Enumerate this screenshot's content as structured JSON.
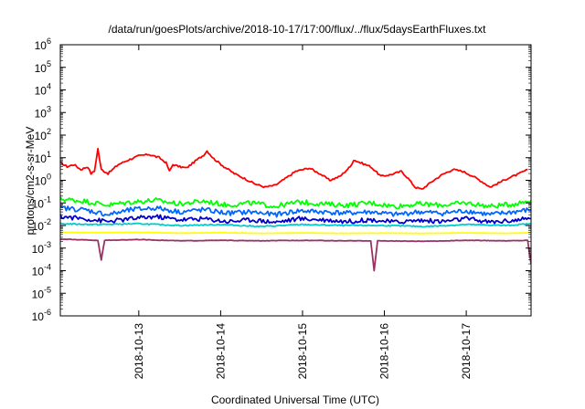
{
  "chart_data": {
    "type": "line",
    "title": "/data/run/goesPlots/archive/2018-10-17/17:00/flux/../flux/5daysEarthFluxes.txt",
    "xlabel": "Coordinated Universal Time (UTC)",
    "ylabel": "protons/cm2-s-sr-MeV",
    "y_scale": "log",
    "y_ticks": [
      {
        "base": "10",
        "exp": "-6",
        "value": 1e-06
      },
      {
        "base": "10",
        "exp": "-5",
        "value": 1e-05
      },
      {
        "base": "10",
        "exp": "-4",
        "value": 0.0001
      },
      {
        "base": "10",
        "exp": "-3",
        "value": 0.001
      },
      {
        "base": "10",
        "exp": "-2",
        "value": 0.01
      },
      {
        "base": "10",
        "exp": "-1",
        "value": 0.1
      },
      {
        "base": "10",
        "exp": "0",
        "value": 1
      },
      {
        "base": "10",
        "exp": "1",
        "value": 10
      },
      {
        "base": "10",
        "exp": "2",
        "value": 100
      },
      {
        "base": "10",
        "exp": "3",
        "value": 1000
      },
      {
        "base": "10",
        "exp": "4",
        "value": 10000
      },
      {
        "base": "10",
        "exp": "5",
        "value": 100000
      },
      {
        "base": "10",
        "exp": "6",
        "value": 1000000
      }
    ],
    "ylim": [
      1e-06,
      1000000.0
    ],
    "xlim": [
      "2018-10-12T01:00",
      "2018-10-17T19:00"
    ],
    "x_ticks": [
      "2018-10-13",
      "2018-10-14",
      "2018-10-15",
      "2018-10-16",
      "2018-10-17"
    ],
    "grid": false,
    "legend": "none",
    "series": [
      {
        "color": "#ff0000",
        "values": [
          [
            "2018-10-12T01:00",
            6
          ],
          [
            "2018-10-12T03:00",
            4
          ],
          [
            "2018-10-12T05:00",
            5
          ],
          [
            "2018-10-12T07:00",
            3
          ],
          [
            "2018-10-12T09:00",
            4
          ],
          [
            "2018-10-12T10:00",
            2
          ],
          [
            "2018-10-12T11:00",
            2.5
          ],
          [
            "2018-10-12T12:00",
            25
          ],
          [
            "2018-10-12T13:00",
            3
          ],
          [
            "2018-10-12T15:00",
            2
          ],
          [
            "2018-10-12T18:00",
            5
          ],
          [
            "2018-10-12T21:00",
            8
          ],
          [
            "2018-10-13T00:00",
            12
          ],
          [
            "2018-10-13T03:00",
            14
          ],
          [
            "2018-10-13T06:00",
            10
          ],
          [
            "2018-10-13T08:00",
            6
          ],
          [
            "2018-10-13T09:00",
            2.5
          ],
          [
            "2018-10-13T10:00",
            5
          ],
          [
            "2018-10-13T12:00",
            4
          ],
          [
            "2018-10-13T14:00",
            3.5
          ],
          [
            "2018-10-13T17:00",
            8
          ],
          [
            "2018-10-13T19:00",
            13
          ],
          [
            "2018-10-13T20:00",
            20
          ],
          [
            "2018-10-13T22:00",
            9
          ],
          [
            "2018-10-14T01:00",
            4
          ],
          [
            "2018-10-14T04:00",
            2
          ],
          [
            "2018-10-14T07:00",
            1.2
          ],
          [
            "2018-10-14T10:00",
            0.7
          ],
          [
            "2018-10-14T13:00",
            0.5
          ],
          [
            "2018-10-14T16:00",
            0.6
          ],
          [
            "2018-10-14T19:00",
            1.2
          ],
          [
            "2018-10-14T22:00",
            2.5
          ],
          [
            "2018-10-15T02:00",
            3.5
          ],
          [
            "2018-10-15T05:00",
            2
          ],
          [
            "2018-10-15T08:00",
            1
          ],
          [
            "2018-10-15T11:00",
            1.5
          ],
          [
            "2018-10-15T14:00",
            4
          ],
          [
            "2018-10-15T15:00",
            8
          ],
          [
            "2018-10-15T17:00",
            6
          ],
          [
            "2018-10-15T20:00",
            4
          ],
          [
            "2018-10-15T23:00",
            1.5
          ],
          [
            "2018-10-16T02:00",
            1.8
          ],
          [
            "2018-10-16T05:00",
            2.5
          ],
          [
            "2018-10-16T07:00",
            1.2
          ],
          [
            "2018-10-16T09:00",
            0.5
          ],
          [
            "2018-10-16T11:00",
            0.4
          ],
          [
            "2018-10-16T14:00",
            0.9
          ],
          [
            "2018-10-16T17:00",
            1.8
          ],
          [
            "2018-10-16T20:00",
            3
          ],
          [
            "2018-10-16T23:00",
            2.5
          ],
          [
            "2018-10-17T02:00",
            1.5
          ],
          [
            "2018-10-17T05:00",
            0.8
          ],
          [
            "2018-10-17T07:00",
            0.5
          ],
          [
            "2018-10-17T09:00",
            0.7
          ],
          [
            "2018-10-17T12:00",
            1.2
          ],
          [
            "2018-10-17T15:00",
            1.8
          ],
          [
            "2018-10-17T18:00",
            3
          ]
        ]
      },
      {
        "color": "#00ff00",
        "values": [
          [
            "2018-10-12T01:00",
            0.15
          ],
          [
            "2018-10-12T08:00",
            0.12
          ],
          [
            "2018-10-12T15:00",
            0.08
          ],
          [
            "2018-10-12T22:00",
            0.11
          ],
          [
            "2018-10-13T05:00",
            0.13
          ],
          [
            "2018-10-13T12:00",
            0.09
          ],
          [
            "2018-10-13T19:00",
            0.12
          ],
          [
            "2018-10-14T02:00",
            0.08
          ],
          [
            "2018-10-14T09:00",
            0.1
          ],
          [
            "2018-10-14T16:00",
            0.07
          ],
          [
            "2018-10-14T23:00",
            0.11
          ],
          [
            "2018-10-15T06:00",
            0.09
          ],
          [
            "2018-10-15T13:00",
            0.08
          ],
          [
            "2018-10-15T20:00",
            0.1
          ],
          [
            "2018-10-16T03:00",
            0.07
          ],
          [
            "2018-10-16T10:00",
            0.09
          ],
          [
            "2018-10-16T17:00",
            0.08
          ],
          [
            "2018-10-17T00:00",
            0.1
          ],
          [
            "2018-10-17T07:00",
            0.07
          ],
          [
            "2018-10-17T14:00",
            0.09
          ],
          [
            "2018-10-17T19:00",
            0.13
          ]
        ]
      },
      {
        "color": "#0066ff",
        "values": [
          [
            "2018-10-12T01:00",
            0.06
          ],
          [
            "2018-10-12T08:00",
            0.05
          ],
          [
            "2018-10-12T15:00",
            0.03
          ],
          [
            "2018-10-12T22:00",
            0.05
          ],
          [
            "2018-10-13T05:00",
            0.06
          ],
          [
            "2018-10-13T12:00",
            0.04
          ],
          [
            "2018-10-13T19:00",
            0.05
          ],
          [
            "2018-10-14T02:00",
            0.035
          ],
          [
            "2018-10-14T09:00",
            0.04
          ],
          [
            "2018-10-14T16:00",
            0.03
          ],
          [
            "2018-10-14T23:00",
            0.045
          ],
          [
            "2018-10-15T06:00",
            0.04
          ],
          [
            "2018-10-15T13:00",
            0.035
          ],
          [
            "2018-10-15T20:00",
            0.04
          ],
          [
            "2018-10-16T03:00",
            0.03
          ],
          [
            "2018-10-16T10:00",
            0.04
          ],
          [
            "2018-10-16T17:00",
            0.035
          ],
          [
            "2018-10-17T00:00",
            0.045
          ],
          [
            "2018-10-17T07:00",
            0.03
          ],
          [
            "2018-10-17T14:00",
            0.04
          ],
          [
            "2018-10-17T19:00",
            0.05
          ]
        ]
      },
      {
        "color": "#0000cc",
        "values": [
          [
            "2018-10-12T01:00",
            0.025
          ],
          [
            "2018-10-12T08:00",
            0.02
          ],
          [
            "2018-10-12T15:00",
            0.015
          ],
          [
            "2018-10-12T22:00",
            0.02
          ],
          [
            "2018-10-13T05:00",
            0.025
          ],
          [
            "2018-10-13T12:00",
            0.018
          ],
          [
            "2018-10-13T19:00",
            0.02
          ],
          [
            "2018-10-14T02:00",
            0.015
          ],
          [
            "2018-10-14T09:00",
            0.018
          ],
          [
            "2018-10-14T16:00",
            0.014
          ],
          [
            "2018-10-14T23:00",
            0.02
          ],
          [
            "2018-10-15T06:00",
            0.018
          ],
          [
            "2018-10-15T13:00",
            0.015
          ],
          [
            "2018-10-15T20:00",
            0.018
          ],
          [
            "2018-10-16T03:00",
            0.014
          ],
          [
            "2018-10-16T10:00",
            0.017
          ],
          [
            "2018-10-16T17:00",
            0.015
          ],
          [
            "2018-10-17T00:00",
            0.02
          ],
          [
            "2018-10-17T07:00",
            0.014
          ],
          [
            "2018-10-17T14:00",
            0.017
          ],
          [
            "2018-10-17T19:00",
            0.02
          ]
        ]
      },
      {
        "color": "#00cccc",
        "values": [
          [
            "2018-10-12T01:00",
            0.012
          ],
          [
            "2018-10-12T12:00",
            0.011
          ],
          [
            "2018-10-13T00:00",
            0.012
          ],
          [
            "2018-10-13T12:00",
            0.01
          ],
          [
            "2018-10-14T00:00",
            0.011
          ],
          [
            "2018-10-14T12:00",
            0.009
          ],
          [
            "2018-10-15T00:00",
            0.011
          ],
          [
            "2018-10-15T12:00",
            0.01
          ],
          [
            "2018-10-16T00:00",
            0.01
          ],
          [
            "2018-10-16T12:00",
            0.009
          ],
          [
            "2018-10-17T00:00",
            0.011
          ],
          [
            "2018-10-17T12:00",
            0.01
          ],
          [
            "2018-10-17T19:00",
            0.012
          ]
        ]
      },
      {
        "color": "#ffff00",
        "values": [
          [
            "2018-10-12T01:00",
            0.005
          ],
          [
            "2018-10-12T12:00",
            0.0048
          ],
          [
            "2018-10-13T00:00",
            0.005
          ],
          [
            "2018-10-13T12:00",
            0.0046
          ],
          [
            "2018-10-14T00:00",
            0.0048
          ],
          [
            "2018-10-14T12:00",
            0.0045
          ],
          [
            "2018-10-15T00:00",
            0.0047
          ],
          [
            "2018-10-15T12:00",
            0.0045
          ],
          [
            "2018-10-16T00:00",
            0.0046
          ],
          [
            "2018-10-16T12:00",
            0.0045
          ],
          [
            "2018-10-17T00:00",
            0.0047
          ],
          [
            "2018-10-17T12:00",
            0.0045
          ],
          [
            "2018-10-17T19:00",
            0.0048
          ]
        ]
      },
      {
        "color": "#993366",
        "values": [
          [
            "2018-10-12T01:00",
            0.0025
          ],
          [
            "2018-10-12T12:00",
            0.0022
          ],
          [
            "2018-10-12T13:00",
            0.0003
          ],
          [
            "2018-10-12T14:00",
            0.0022
          ],
          [
            "2018-10-13T00:00",
            0.0024
          ],
          [
            "2018-10-13T12:00",
            0.0021
          ],
          [
            "2018-10-14T00:00",
            0.0022
          ],
          [
            "2018-10-14T12:00",
            0.0021
          ],
          [
            "2018-10-15T00:00",
            0.0022
          ],
          [
            "2018-10-15T12:00",
            0.0021
          ],
          [
            "2018-10-15T20:00",
            0.0021
          ],
          [
            "2018-10-15T21:00",
            0.0001
          ],
          [
            "2018-10-15T22:00",
            0.0021
          ],
          [
            "2018-10-16T12:00",
            0.002
          ],
          [
            "2018-10-17T00:00",
            0.0022
          ],
          [
            "2018-10-17T12:00",
            0.0021
          ],
          [
            "2018-10-17T18:00",
            0.0022
          ],
          [
            "2018-10-17T19:00",
            0.0002
          ]
        ]
      }
    ]
  }
}
